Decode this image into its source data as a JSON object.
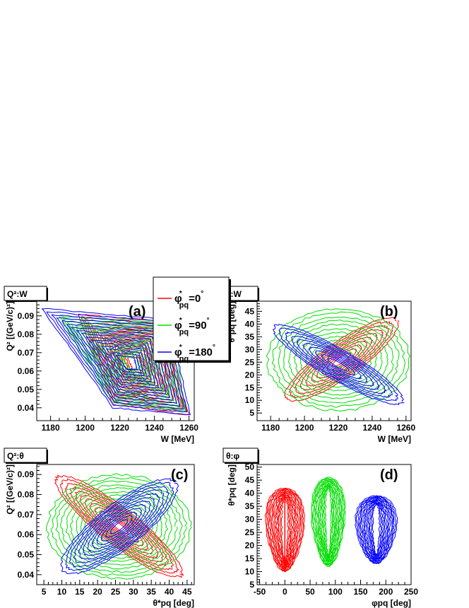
{
  "colors": {
    "red": "#ff0000",
    "green": "#00dd00",
    "blue": "#0000ff"
  },
  "legend": {
    "entries": [
      {
        "label": "φ*pq=0°",
        "base": "φ",
        "sup": "*",
        "sub": "pq",
        "value": "=0",
        "deg": "°",
        "color": "#ff0000"
      },
      {
        "label": "φ*pq=90°",
        "base": "φ",
        "sup": "*",
        "sub": "pq",
        "value": "=90",
        "deg": "°",
        "color": "#00dd00"
      },
      {
        "label": "φ*pq=180°",
        "base": "φ",
        "sup": "*",
        "sub": "pq",
        "value": "=180",
        "deg": "°",
        "color": "#0000ff"
      }
    ]
  },
  "chart_data": [
    {
      "type": "contour",
      "panel": "(a)",
      "title": "Q²:W",
      "xlabel": "W [MeV]",
      "ylabel": "Q² [(GeV/c)²]",
      "xlim": [
        1172,
        1263
      ],
      "ylim": [
        0.033,
        0.098
      ],
      "xticks": [
        "1180",
        "1200",
        "1220",
        "1240",
        "1260"
      ],
      "yticks": [
        "0.04",
        "0.05",
        "0.06",
        "0.07",
        "0.08",
        "0.09"
      ],
      "series": [
        {
          "phi": 0,
          "color": "#ff0000",
          "corners": [
            [
              1196,
              0.091
            ],
            [
              1216,
              0.042
            ],
            [
              1260,
              0.036
            ],
            [
              1244,
              0.087
            ]
          ]
        },
        {
          "phi": 90,
          "color": "#00dd00",
          "corners": [
            [
              1185,
              0.09
            ],
            [
              1215,
              0.043
            ],
            [
              1258,
              0.038
            ],
            [
              1250,
              0.086
            ]
          ]
        },
        {
          "phi": 180,
          "color": "#0000ff",
          "corners": [
            [
              1175,
              0.094
            ],
            [
              1216,
              0.04
            ],
            [
              1261,
              0.036
            ],
            [
              1248,
              0.088
            ]
          ]
        }
      ]
    },
    {
      "type": "contour",
      "panel": "(b)",
      "title": "θ:W",
      "xlabel": "W [MeV]",
      "ylabel": "θ*pq [deg]",
      "xlim": [
        1172,
        1263
      ],
      "ylim": [
        2,
        49
      ],
      "xticks": [
        "1180",
        "1200",
        "1220",
        "1240",
        "1260"
      ],
      "yticks": [
        "5",
        "10",
        "15",
        "20",
        "25",
        "30",
        "35",
        "40",
        "45"
      ],
      "series": [
        {
          "phi": 0,
          "color": "#ff0000",
          "center": [
            1222,
            26
          ],
          "semi_axes": [
            40,
            7
          ],
          "angle_deg": 35,
          "levels": 10
        },
        {
          "phi": 90,
          "color": "#00dd00",
          "center": [
            1220,
            26
          ],
          "semi_axes": [
            42,
            20
          ],
          "angle_deg": 0,
          "levels": 12
        },
        {
          "phi": 180,
          "color": "#0000ff",
          "center": [
            1220,
            24
          ],
          "semi_axes": [
            44,
            6
          ],
          "angle_deg": -30,
          "levels": 10
        }
      ]
    },
    {
      "type": "contour",
      "panel": "(c)",
      "title": "Q²:θ",
      "xlabel": "θ*pq [deg]",
      "ylabel": "Q² [(GeV/c)²]",
      "xlim": [
        3,
        47
      ],
      "ylim": [
        0.035,
        0.095
      ],
      "xticks": [
        "5",
        "10",
        "15",
        "20",
        "25",
        "30",
        "35",
        "40",
        "45"
      ],
      "yticks": [
        "0.04",
        "0.05",
        "0.06",
        "0.07",
        "0.08",
        "0.09"
      ],
      "series": [
        {
          "phi": 0,
          "color": "#ff0000",
          "center": [
            26,
            0.064
          ],
          "semi_axes": [
            22,
            0.009
          ],
          "angle_deg": -38,
          "levels": 12
        },
        {
          "phi": 90,
          "color": "#00dd00",
          "center": [
            26,
            0.064
          ],
          "semi_axes": [
            20,
            0.026
          ],
          "angle_deg": 0,
          "levels": 14
        },
        {
          "phi": 180,
          "color": "#0000ff",
          "center": [
            26,
            0.064
          ],
          "semi_axes": [
            20,
            0.011
          ],
          "angle_deg": 38,
          "levels": 12
        }
      ]
    },
    {
      "type": "contour",
      "panel": "(d)",
      "title": "θ:φ",
      "xlabel": "φpq [deg]",
      "ylabel": "θ*pq [deg]",
      "xlim": [
        -55,
        250
      ],
      "ylim": [
        5,
        51
      ],
      "xticks": [
        "-50",
        "0",
        "50",
        "100",
        "150",
        "200",
        "250"
      ],
      "yticks": [
        "5",
        "10",
        "15",
        "20",
        "25",
        "30",
        "35",
        "40",
        "45",
        "50"
      ],
      "series": [
        {
          "phi": 0,
          "color": "#ff0000",
          "x_range": [
            -48,
            48
          ],
          "theta_range": [
            10,
            42
          ],
          "levels": 14
        },
        {
          "phi": 90,
          "color": "#00dd00",
          "x_range": [
            44,
            128
          ],
          "theta_range": [
            12,
            46
          ],
          "levels": 14
        },
        {
          "phi": 180,
          "color": "#0000ff",
          "x_range": [
            130,
            232
          ],
          "theta_range": [
            13,
            39
          ],
          "levels": 14
        }
      ]
    }
  ]
}
